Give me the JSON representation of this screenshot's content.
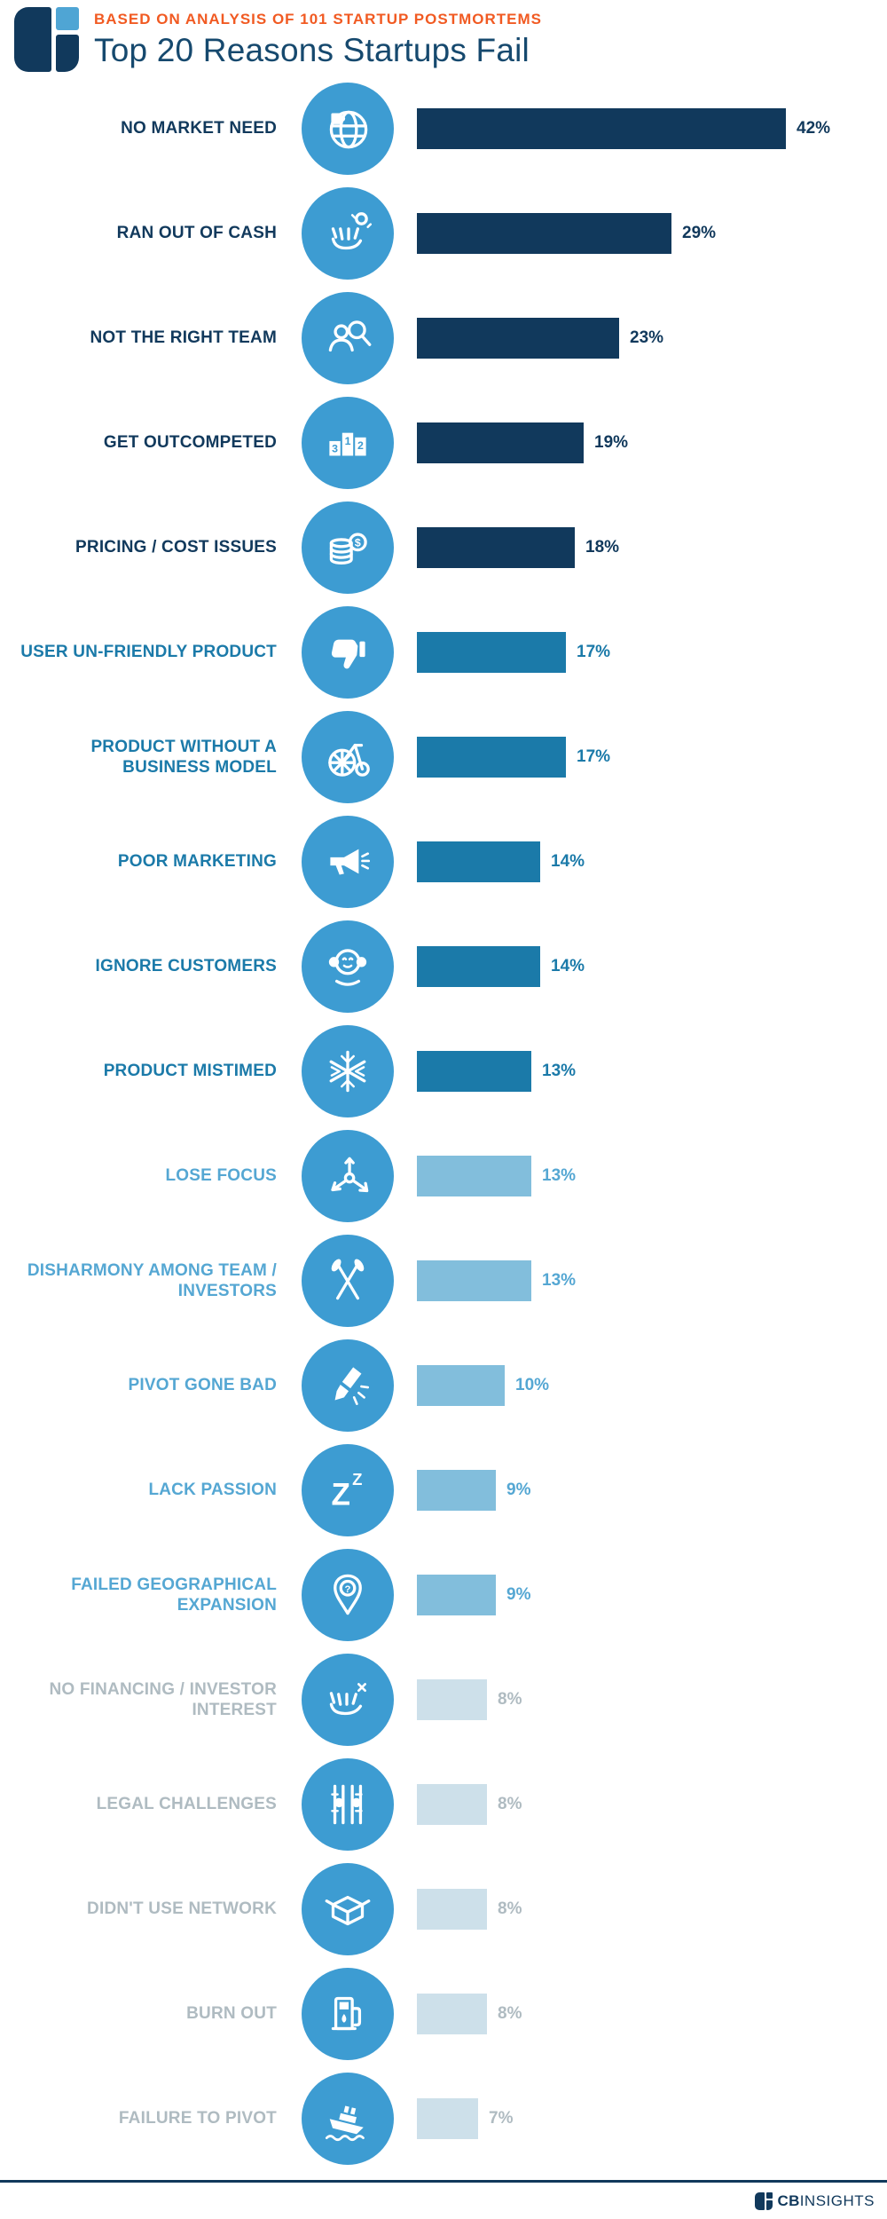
{
  "header": {
    "kicker": "BASED ON ANALYSIS OF 101 STARTUP POSTMORTEMS",
    "title": "Top 20 Reasons Startups Fail"
  },
  "footer": {
    "brand_bold": "CB",
    "brand_light": "INSIGHTS"
  },
  "colors": {
    "orange": "#F15A22",
    "navy": "#11395C",
    "title_navy": "#16496E",
    "logo_light": "#4FA5D4",
    "icon_circle": "#3D9CD2",
    "tier1_bar": "#11395C",
    "tier1_text": "#11395C",
    "tier2_bar": "#1B7AA9",
    "tier2_text": "#1B7AA9",
    "tier3_bar": "#82BEDC",
    "tier3_text": "#55A7D3",
    "tier4_bar": "#CDE0EA",
    "tier4_text": "#AFBBC1"
  },
  "chart_data": {
    "type": "bar",
    "orientation": "horizontal",
    "title": "Top 20 Reasons Startups Fail",
    "subtitle": "BASED ON ANALYSIS OF 101 STARTUP POSTMORTEMS",
    "unit": "%",
    "xlim": [
      0,
      45
    ],
    "categories": [
      "NO MARKET NEED",
      "RAN OUT OF CASH",
      "NOT THE RIGHT TEAM",
      "GET OUTCOMPETED",
      "PRICING / COST ISSUES",
      "USER UN-FRIENDLY PRODUCT",
      "PRODUCT WITHOUT A BUSINESS MODEL",
      "POOR MARKETING",
      "IGNORE CUSTOMERS",
      "PRODUCT MISTIMED",
      "LOSE FOCUS",
      "DISHARMONY AMONG TEAM / INVESTORS",
      "PIVOT GONE BAD",
      "LACK PASSION",
      "FAILED GEOGRAPHICAL EXPANSION",
      "NO FINANCING / INVESTOR INTEREST",
      "LEGAL CHALLENGES",
      "DIDN'T USE NETWORK",
      "BURN OUT",
      "FAILURE TO PIVOT"
    ],
    "values": [
      42,
      29,
      23,
      19,
      18,
      17,
      17,
      14,
      14,
      13,
      13,
      13,
      10,
      9,
      9,
      8,
      8,
      8,
      8,
      7
    ],
    "items": [
      {
        "label": "NO MARKET NEED",
        "value": 42,
        "icon": "globe-puzzle-icon",
        "tier": 1
      },
      {
        "label": "RAN OUT OF CASH",
        "value": 29,
        "icon": "empty-pocket-icon",
        "tier": 1
      },
      {
        "label": "NOT THE RIGHT TEAM",
        "value": 23,
        "icon": "team-search-icon",
        "tier": 1
      },
      {
        "label": "GET OUTCOMPETED",
        "value": 19,
        "icon": "podium-icon",
        "tier": 1
      },
      {
        "label": "PRICING / COST ISSUES",
        "value": 18,
        "icon": "coin-stack-icon",
        "tier": 1
      },
      {
        "label": "USER UN-FRIENDLY PRODUCT",
        "value": 17,
        "icon": "thumbs-down-icon",
        "tier": 2
      },
      {
        "label": "PRODUCT WITHOUT A BUSINESS MODEL",
        "value": 17,
        "icon": "penny-farthing-icon",
        "tier": 2
      },
      {
        "label": "POOR MARKETING",
        "value": 14,
        "icon": "megaphone-icon",
        "tier": 2
      },
      {
        "label": "IGNORE CUSTOMERS",
        "value": 14,
        "icon": "monkey-ears-icon",
        "tier": 2
      },
      {
        "label": "PRODUCT MISTIMED",
        "value": 13,
        "icon": "snowflake-icon",
        "tier": 2
      },
      {
        "label": "LOSE FOCUS",
        "value": 13,
        "icon": "scatter-arrows-icon",
        "tier": 3
      },
      {
        "label": "DISHARMONY AMONG TEAM / INVESTORS",
        "value": 13,
        "icon": "crossed-oars-icon",
        "tier": 3
      },
      {
        "label": "PIVOT GONE BAD",
        "value": 10,
        "icon": "broken-pencil-icon",
        "tier": 3
      },
      {
        "label": "LACK PASSION",
        "value": 9,
        "icon": "sleep-zzz-icon",
        "tier": 3
      },
      {
        "label": "FAILED GEOGRAPHICAL EXPANSION",
        "value": 9,
        "icon": "map-pin-question-icon",
        "tier": 3
      },
      {
        "label": "NO FINANCING / INVESTOR INTEREST",
        "value": 8,
        "icon": "empty-hand-icon",
        "tier": 4
      },
      {
        "label": "LEGAL CHALLENGES",
        "value": 8,
        "icon": "prison-bars-icon",
        "tier": 4
      },
      {
        "label": "DIDN'T USE NETWORK",
        "value": 8,
        "icon": "open-box-icon",
        "tier": 4
      },
      {
        "label": "BURN OUT",
        "value": 8,
        "icon": "fuel-pump-icon",
        "tier": 4
      },
      {
        "label": "FAILURE TO PIVOT",
        "value": 7,
        "icon": "sinking-ship-icon",
        "tier": 4
      }
    ]
  }
}
